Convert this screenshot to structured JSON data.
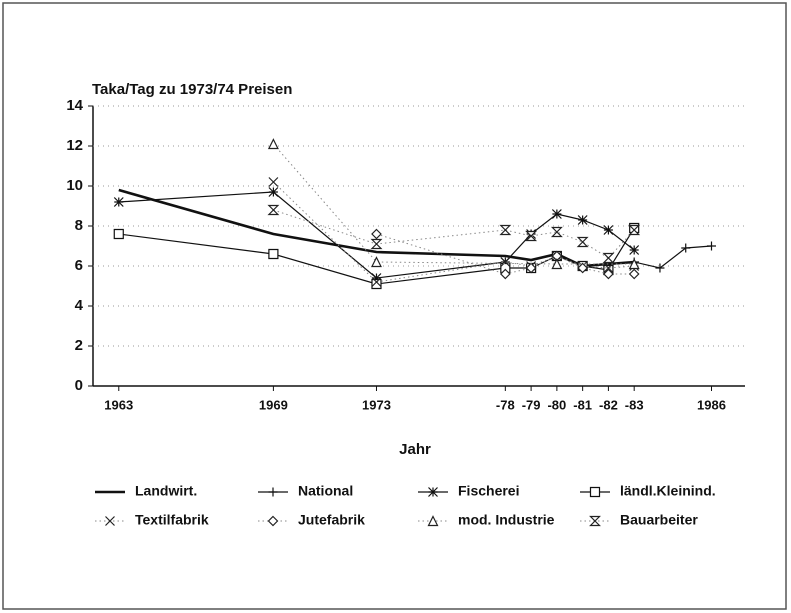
{
  "chart_data": {
    "type": "line",
    "title": "Taka/Tag zu 1973/74 Preisen",
    "x_label": "Jahr",
    "xlim": [
      1962,
      1987.3
    ],
    "xticks": [
      1963,
      1969,
      1973,
      {
        "value": 1978,
        "label": "-78"
      },
      {
        "value": 1979,
        "label": "-79"
      },
      {
        "value": 1980,
        "label": "-80"
      },
      {
        "value": 1981,
        "label": "-81"
      },
      {
        "value": 1982,
        "label": "-82"
      },
      {
        "value": 1983,
        "label": "-83"
      },
      1986
    ],
    "ylim": [
      0,
      14
    ],
    "yticks": [
      0,
      2,
      4,
      6,
      8,
      10,
      12,
      14
    ],
    "grid": true,
    "series": [
      {
        "name": "Landwirt.",
        "color": "#111",
        "line_style": "solid",
        "line_width": 2.6,
        "marker": "none",
        "x": [
          1963,
          1969,
          1973,
          1978,
          1979,
          1980,
          1981,
          1982,
          1983
        ],
        "values": [
          9.8,
          7.6,
          6.7,
          6.5,
          6.3,
          6.6,
          6.0,
          6.1,
          6.2
        ]
      },
      {
        "name": "National",
        "color": "#111",
        "line_style": "solid",
        "line_width": 1.2,
        "marker": "plus",
        "x": [
          1983,
          1984,
          1985,
          1986
        ],
        "values": [
          6.2,
          5.9,
          6.9,
          7.0
        ]
      },
      {
        "name": "Fischerei",
        "color": "#111",
        "line_style": "solid",
        "line_width": 1.2,
        "marker": "star",
        "x": [
          1963,
          1969,
          1973,
          1978,
          1979,
          1980,
          1981,
          1982,
          1983
        ],
        "values": [
          9.2,
          9.7,
          5.4,
          6.2,
          7.6,
          8.6,
          8.3,
          7.8,
          6.8
        ]
      },
      {
        "name": "ländl.Kleinind.",
        "color": "#111",
        "line_style": "solid",
        "line_width": 1.2,
        "marker": "square",
        "x": [
          1963,
          1969,
          1973,
          1978,
          1979,
          1980,
          1981,
          1982,
          1983
        ],
        "values": [
          7.6,
          6.6,
          5.1,
          5.9,
          5.9,
          6.5,
          6.0,
          5.8,
          7.9
        ]
      },
      {
        "name": "Textilfabrik",
        "color": "#222",
        "line_style": "dotted",
        "line_width": 1,
        "marker": "x",
        "x": [
          1969,
          1973,
          1978,
          1979,
          1980,
          1981,
          1982,
          1983
        ],
        "values": [
          10.2,
          5.2,
          6.2,
          6.0,
          6.5,
          6.0,
          5.9,
          6.0
        ]
      },
      {
        "name": "Jutefabrik",
        "color": "#222",
        "line_style": "dotted",
        "line_width": 1,
        "marker": "diamond",
        "x": [
          1973,
          1978,
          1979,
          1980,
          1981,
          1982,
          1983
        ],
        "values": [
          7.6,
          5.6,
          5.9,
          6.5,
          5.9,
          5.6,
          5.6
        ]
      },
      {
        "name": "mod. Industrie",
        "color": "#222",
        "line_style": "dotted",
        "line_width": 1,
        "marker": "triangle",
        "x": [
          1969,
          1973,
          1980,
          1983
        ],
        "values": [
          12.1,
          6.2,
          6.1,
          6.1
        ]
      },
      {
        "name": "Bauarbeiter",
        "color": "#222",
        "line_style": "dotted",
        "line_width": 1,
        "marker": "hourglass",
        "x": [
          1969,
          1973,
          1978,
          1979,
          1980,
          1981,
          1982,
          1983
        ],
        "values": [
          8.8,
          7.1,
          7.8,
          7.5,
          7.7,
          7.2,
          6.4,
          7.8
        ]
      }
    ]
  }
}
